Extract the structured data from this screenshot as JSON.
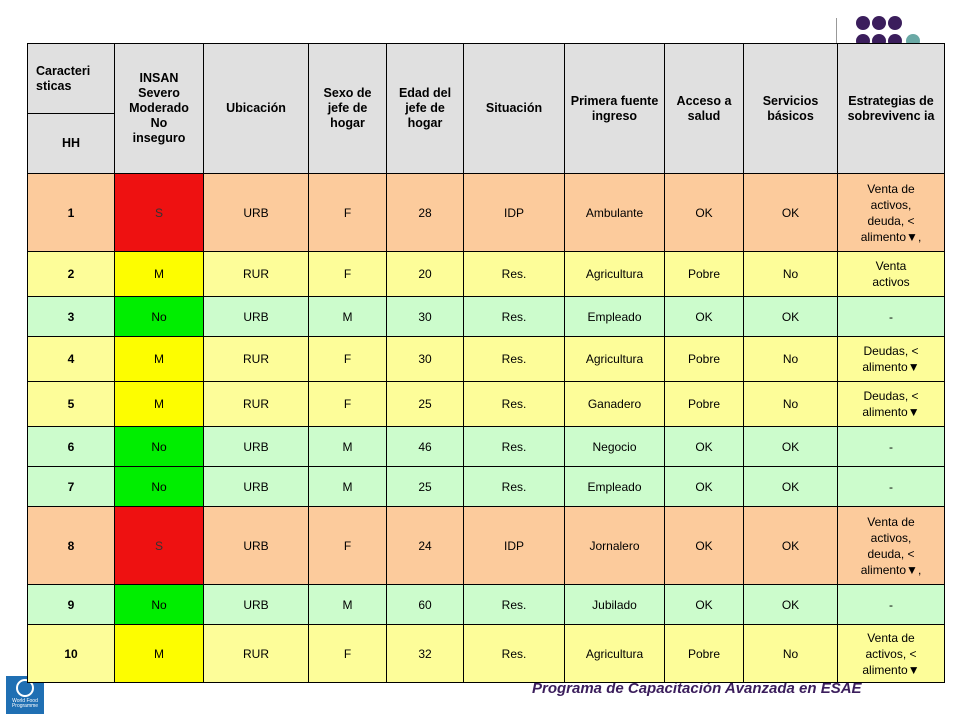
{
  "header": {
    "caracteristicas": "Caracteri sticas",
    "hh": "HH",
    "insan_lines": [
      {
        "bold": "",
        "rest": "INSAN"
      },
      {
        "bold": "S",
        "rest": "evero"
      },
      {
        "bold": "M",
        "rest": "oderado"
      },
      {
        "bold": "",
        "rest": "No"
      },
      {
        "bold": "",
        "rest": "inseguro"
      }
    ],
    "columns": [
      "Ubicación",
      "Sexo de jefe de hogar",
      "Edad del jefe de hogar",
      "Situación",
      "Primera fuente ingreso",
      "Acceso a salud",
      "Servicios básicos",
      "Estrategias de sobrevivenc ia"
    ]
  },
  "rows": [
    {
      "hh": "1",
      "insan": "S",
      "insan_color": "red",
      "row_color": "orange",
      "ubicacion": "URB",
      "sexo": "F",
      "edad": "28",
      "situacion": "IDP",
      "fuente": "Ambulante",
      "salud": "OK",
      "servicios": "OK",
      "estrategias": [
        "Venta de",
        "activos,",
        "deuda, <",
        "alimento▼,"
      ]
    },
    {
      "hh": "2",
      "insan": "M",
      "insan_color": "yellow",
      "row_color": "yellow",
      "ubicacion": "RUR",
      "sexo": "F",
      "edad": "20",
      "situacion": "Res.",
      "fuente": "Agricultura",
      "salud": "Pobre",
      "servicios": "No",
      "estrategias": [
        "Venta",
        "activos"
      ]
    },
    {
      "hh": "3",
      "insan": "No",
      "insan_color": "green",
      "row_color": "green",
      "ubicacion": "URB",
      "sexo": "M",
      "edad": "30",
      "situacion": "Res.",
      "fuente": "Empleado",
      "salud": "OK",
      "servicios": "OK",
      "estrategias": [
        "-"
      ]
    },
    {
      "hh": "4",
      "insan": "M",
      "insan_color": "yellow",
      "row_color": "yellow",
      "ubicacion": "RUR",
      "sexo": "F",
      "edad": "30",
      "situacion": "Res.",
      "fuente": "Agricultura",
      "salud": "Pobre",
      "servicios": "No",
      "estrategias": [
        "Deudas, <",
        "alimento▼"
      ]
    },
    {
      "hh": "5",
      "insan": "M",
      "insan_color": "yellow",
      "row_color": "yellow",
      "ubicacion": "RUR",
      "sexo": "F",
      "edad": "25",
      "situacion": "Res.",
      "fuente": "Ganadero",
      "salud": "Pobre",
      "servicios": "No",
      "estrategias": [
        "Deudas, <",
        "alimento▼"
      ]
    },
    {
      "hh": "6",
      "insan": "No",
      "insan_color": "green",
      "row_color": "green",
      "ubicacion": "URB",
      "sexo": "M",
      "edad": "46",
      "situacion": "Res.",
      "fuente": "Negocio",
      "salud": "OK",
      "servicios": "OK",
      "estrategias": [
        "-"
      ]
    },
    {
      "hh": "7",
      "insan": "No",
      "insan_color": "green",
      "row_color": "green",
      "ubicacion": "URB",
      "sexo": "M",
      "edad": "25",
      "situacion": "Res.",
      "fuente": "Empleado",
      "salud": "OK",
      "servicios": "OK",
      "estrategias": [
        "-"
      ]
    },
    {
      "hh": "8",
      "insan": "S",
      "insan_color": "red",
      "row_color": "orange",
      "ubicacion": "URB",
      "sexo": "F",
      "edad": "24",
      "situacion": "IDP",
      "fuente": "Jornalero",
      "salud": "OK",
      "servicios": "OK",
      "estrategias": [
        "Venta de",
        "activos,",
        "deuda, <",
        "alimento▼,"
      ]
    },
    {
      "hh": "9",
      "insan": "No",
      "insan_color": "green",
      "row_color": "green",
      "ubicacion": "URB",
      "sexo": "M",
      "edad": "60",
      "situacion": "Res.",
      "fuente": "Jubilado",
      "salud": "OK",
      "servicios": "OK",
      "estrategias": [
        "-"
      ]
    },
    {
      "hh": "10",
      "insan": "M",
      "insan_color": "yellow",
      "row_color": "yellow",
      "ubicacion": "RUR",
      "sexo": "F",
      "edad": "32",
      "situacion": "Res.",
      "fuente": "Agricultura",
      "salud": "Pobre",
      "servicios": "No",
      "estrategias": [
        "Venta de",
        "activos, <",
        "alimento▼"
      ]
    }
  ],
  "footer": {
    "text": "Programa de Capacitación Avanzada en ESAE",
    "logo_text": "World Food Programme"
  },
  "colors": {
    "dots": "#3b1e5c",
    "dot_accent": "#6aa9a5",
    "severe": "#ee1111",
    "moderate": "#fdfd00",
    "no_insecure": "#00ee00",
    "row_orange": "#fccb9c",
    "row_yellow": "#fdfd99",
    "row_green": "#ccfccc",
    "header": "#e0e0e0"
  }
}
